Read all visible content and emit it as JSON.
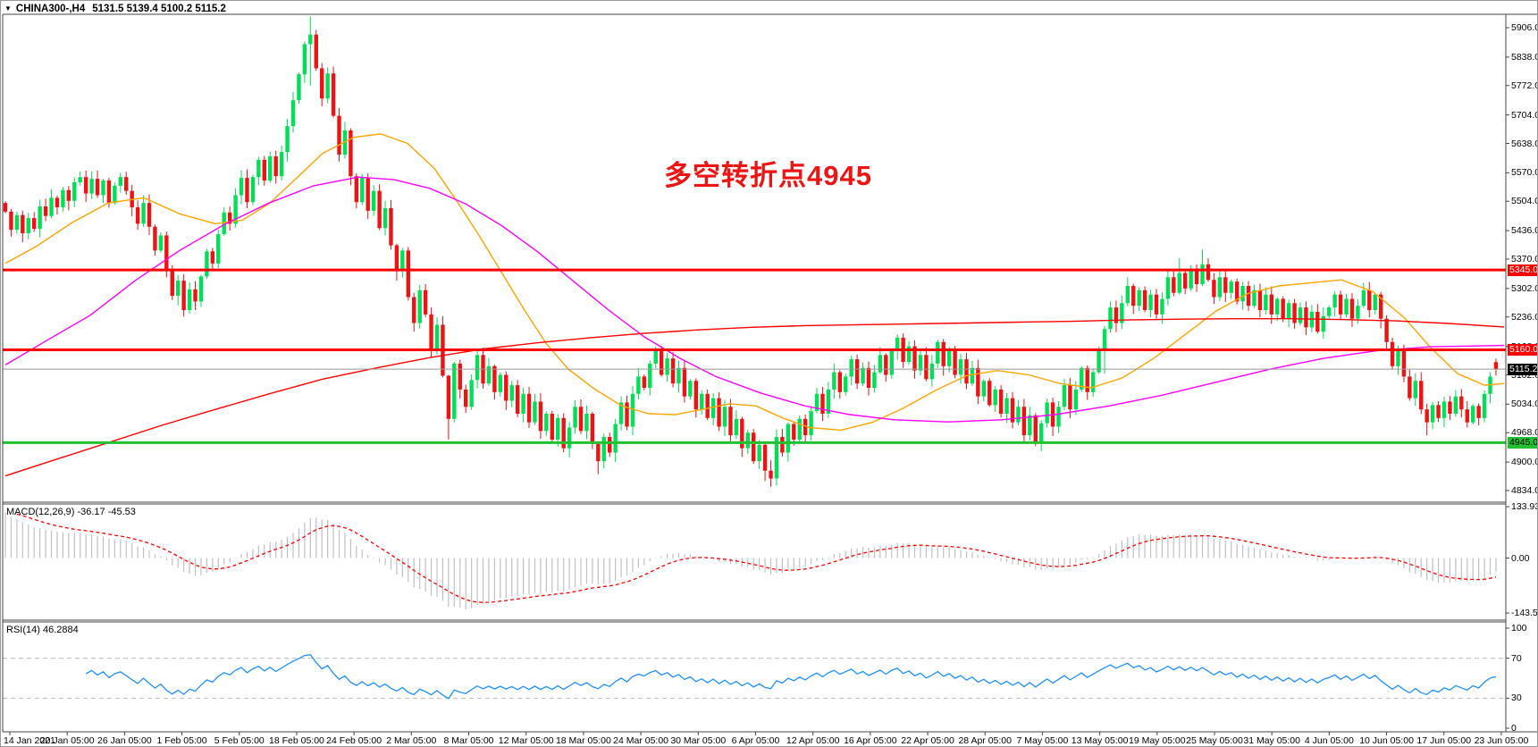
{
  "header": {
    "symbol": "CHINA300-,H4",
    "ohlc_line": "5131.5 5139.4 5100.2 5115.2",
    "dropdown_icon": "▼"
  },
  "annotation": {
    "text": "多空转折点4945",
    "color": "#ee1414"
  },
  "chart_data": {
    "type": "candlestick",
    "title": "CHINA300-,H4",
    "timeframe": "H4",
    "ylim": [
      4834,
      5906
    ],
    "grid": false,
    "up_color": "#00df55",
    "down_color": "#ee1212",
    "price_ticks": [
      5906.0,
      5838.0,
      5772.0,
      5704.0,
      5638.0,
      5570.0,
      5504.0,
      5436.0,
      5370.0,
      5302.0,
      5236.0,
      5168.0,
      5102.0,
      5034.0,
      4968.0,
      4900.0,
      4834.0
    ],
    "time_labels": [
      "14 Jan 2021",
      "20 Jan 05:00",
      "26 Jan 05:00",
      "1 Feb 05:00",
      "5 Feb 05:00",
      "18 Feb 05:00",
      "24 Feb 05:00",
      "2 Mar 05:00",
      "8 Mar 05:00",
      "12 Mar 05:00",
      "18 Mar 05:00",
      "24 Mar 05:00",
      "30 Mar 05:00",
      "6 Apr 05:00",
      "12 Apr 05:00",
      "16 Apr 05:00",
      "22 Apr 05:00",
      "28 Apr 05:00",
      "7 May 05:00",
      "13 May 05:00",
      "19 May 05:00",
      "25 May 05:00",
      "31 May 05:00",
      "4 Jun 05:00",
      "10 Jun 05:00",
      "17 Jun 05:00",
      "23 Jun 05:00"
    ],
    "first_open": 5500,
    "closes": [
      5480,
      5438,
      5472,
      5430,
      5465,
      5440,
      5492,
      5470,
      5512,
      5490,
      5530,
      5505,
      5548,
      5560,
      5522,
      5556,
      5518,
      5552,
      5500,
      5540,
      5560,
      5528,
      5490,
      5452,
      5500,
      5445,
      5390,
      5425,
      5345,
      5285,
      5320,
      5252,
      5300,
      5272,
      5330,
      5388,
      5360,
      5428,
      5478,
      5452,
      5518,
      5558,
      5502,
      5560,
      5600,
      5552,
      5608,
      5562,
      5618,
      5678,
      5738,
      5798,
      5868,
      5890,
      5812,
      5742,
      5800,
      5702,
      5612,
      5668,
      5562,
      5502,
      5558,
      5482,
      5528,
      5442,
      5488,
      5402,
      5342,
      5390,
      5282,
      5222,
      5298,
      5242,
      5160,
      5218,
      5100,
      5000,
      5128,
      5068,
      5028,
      5090,
      5148,
      5082,
      5122,
      5062,
      5102,
      5042,
      5078,
      5012,
      5058,
      4992,
      5040,
      4972,
      5012,
      4952,
      5002,
      4932,
      4980,
      5028,
      4972,
      5012,
      4942,
      4902,
      4958,
      4922,
      4988,
      5038,
      4982,
      5058,
      5098,
      5072,
      5128,
      5158,
      5102,
      5140,
      5082,
      5118,
      5052,
      5088,
      5022,
      5058,
      5002,
      5048,
      4982,
      5028,
      4962,
      5000,
      4932,
      4968,
      4902,
      4940,
      4880,
      4862,
      4958,
      4922,
      4988,
      4952,
      5000,
      4962,
      5018,
      5058,
      5012,
      5068,
      5108,
      5062,
      5098,
      5138,
      5082,
      5118,
      5072,
      5108,
      5148,
      5102,
      5158,
      5188,
      5132,
      5168,
      5112,
      5148,
      5092,
      5128,
      5178,
      5122,
      5158,
      5102,
      5138,
      5082,
      5118,
      5052,
      5088,
      5032,
      5068,
      5012,
      5048,
      4992,
      5028,
      4962,
      5008,
      4942,
      4990,
      5038,
      4982,
      5028,
      5078,
      5022,
      5068,
      5118,
      5062,
      5108,
      5158,
      5208,
      5258,
      5222,
      5268,
      5308,
      5262,
      5298,
      5252,
      5288,
      5242,
      5278,
      5328,
      5292,
      5338,
      5302,
      5348,
      5312,
      5358,
      5322,
      5282,
      5328,
      5292,
      5318,
      5272,
      5308,
      5262,
      5298,
      5252,
      5288,
      5242,
      5278,
      5232,
      5268,
      5222,
      5258,
      5212,
      5248,
      5202,
      5238,
      5258,
      5288,
      5242,
      5278,
      5232,
      5262,
      5298,
      5252,
      5288,
      5232,
      5178,
      5122,
      5158,
      5098,
      5048,
      5088,
      5022,
      4992,
      5032,
      5002,
      5040,
      5012,
      5052,
      5022,
      4992,
      5030,
      5002,
      5058,
      5098,
      5115.2
    ],
    "wick_overrides": {
      "53": [
        5932,
        5772
      ],
      "77": [
        5102,
        4952
      ],
      "78": [
        5132,
        4992
      ],
      "103": [
        4948,
        4872
      ],
      "132": [
        4944,
        4856
      ],
      "133": [
        4904,
        4843
      ],
      "191": [
        5215,
        5105
      ],
      "204": [
        5372,
        5288
      ],
      "208": [
        5392,
        5308
      ],
      "247": [
        5035,
        4962
      ],
      "259": [
        5139.4,
        5100.2
      ]
    },
    "last_candle": {
      "open": 5131.5,
      "high": 5139.4,
      "low": 5100.2,
      "close": 5115.2
    },
    "ma_lines": [
      {
        "name": "ma-fast-orange",
        "color": "#ffa500",
        "points": [
          [
            5,
            5360
          ],
          [
            40,
            5400
          ],
          [
            80,
            5455
          ],
          [
            120,
            5500
          ],
          [
            160,
            5512
          ],
          [
            200,
            5475
          ],
          [
            240,
            5452
          ],
          [
            270,
            5460
          ],
          [
            300,
            5498
          ],
          [
            330,
            5556
          ],
          [
            360,
            5615
          ],
          [
            395,
            5652
          ],
          [
            425,
            5660
          ],
          [
            455,
            5638
          ],
          [
            485,
            5580
          ],
          [
            510,
            5505
          ],
          [
            535,
            5425
          ],
          [
            560,
            5340
          ],
          [
            585,
            5255
          ],
          [
            610,
            5175
          ],
          [
            635,
            5115
          ],
          [
            665,
            5068
          ],
          [
            695,
            5030
          ],
          [
            725,
            5012
          ],
          [
            755,
            5010
          ],
          [
            785,
            5022
          ],
          [
            815,
            5035
          ],
          [
            845,
            5030
          ],
          [
            875,
            5002
          ],
          [
            905,
            4980
          ],
          [
            940,
            4974
          ],
          [
            975,
            4992
          ],
          [
            1010,
            5025
          ],
          [
            1045,
            5065
          ],
          [
            1080,
            5100
          ],
          [
            1115,
            5112
          ],
          [
            1150,
            5102
          ],
          [
            1185,
            5082
          ],
          [
            1220,
            5072
          ],
          [
            1255,
            5095
          ],
          [
            1290,
            5140
          ],
          [
            1325,
            5195
          ],
          [
            1360,
            5250
          ],
          [
            1395,
            5290
          ],
          [
            1430,
            5308
          ],
          [
            1465,
            5315
          ],
          [
            1500,
            5322
          ],
          [
            1535,
            5295
          ],
          [
            1570,
            5235
          ],
          [
            1600,
            5165
          ],
          [
            1630,
            5105
          ],
          [
            1660,
            5078
          ],
          [
            1682,
            5082
          ]
        ]
      },
      {
        "name": "ma-mid-magenta",
        "color": "#ff00ff",
        "points": [
          [
            5,
            5125
          ],
          [
            50,
            5180
          ],
          [
            100,
            5240
          ],
          [
            150,
            5320
          ],
          [
            200,
            5390
          ],
          [
            250,
            5450
          ],
          [
            300,
            5500
          ],
          [
            350,
            5540
          ],
          [
            400,
            5560
          ],
          [
            440,
            5554
          ],
          [
            480,
            5534
          ],
          [
            520,
            5498
          ],
          [
            560,
            5448
          ],
          [
            600,
            5388
          ],
          [
            640,
            5320
          ],
          [
            680,
            5252
          ],
          [
            720,
            5190
          ],
          [
            760,
            5140
          ],
          [
            800,
            5098
          ],
          [
            850,
            5060
          ],
          [
            900,
            5030
          ],
          [
            950,
            5010
          ],
          [
            1000,
            4998
          ],
          [
            1060,
            4993
          ],
          [
            1120,
            4998
          ],
          [
            1180,
            5010
          ],
          [
            1240,
            5030
          ],
          [
            1300,
            5055
          ],
          [
            1360,
            5085
          ],
          [
            1420,
            5115
          ],
          [
            1480,
            5140
          ],
          [
            1540,
            5158
          ],
          [
            1600,
            5167
          ],
          [
            1682,
            5170
          ]
        ]
      },
      {
        "name": "ma-slow-red",
        "color": "#ff0000",
        "points": [
          [
            5,
            4868
          ],
          [
            60,
            4905
          ],
          [
            120,
            4945
          ],
          [
            180,
            4985
          ],
          [
            240,
            5022
          ],
          [
            300,
            5058
          ],
          [
            360,
            5092
          ],
          [
            420,
            5118
          ],
          [
            480,
            5142
          ],
          [
            540,
            5162
          ],
          [
            600,
            5176
          ],
          [
            660,
            5188
          ],
          [
            720,
            5198
          ],
          [
            780,
            5206
          ],
          [
            840,
            5212
          ],
          [
            900,
            5216
          ],
          [
            960,
            5218
          ],
          [
            1020,
            5220
          ],
          [
            1080,
            5222
          ],
          [
            1140,
            5224
          ],
          [
            1200,
            5226
          ],
          [
            1260,
            5229
          ],
          [
            1320,
            5231
          ],
          [
            1380,
            5232
          ],
          [
            1440,
            5232
          ],
          [
            1500,
            5230
          ],
          [
            1560,
            5227
          ],
          [
            1620,
            5221
          ],
          [
            1682,
            5213
          ]
        ]
      }
    ],
    "hlines": [
      {
        "name": "resistance-line-5345",
        "price": 5345,
        "color": "#ff0000",
        "width": 3
      },
      {
        "name": "resistance-line-5160",
        "price": 5160,
        "color": "#ff0000",
        "width": 3
      },
      {
        "name": "support-line-4945",
        "price": 4945,
        "color": "#21c12f",
        "width": 3
      },
      {
        "name": "current-price-line",
        "price": 5115.2,
        "color": "#999999",
        "width": 1
      }
    ],
    "axis_badges": [
      {
        "text": "5345.0",
        "price": 5345,
        "bg": "#ff0000",
        "fg": "#ffffff"
      },
      {
        "text": "5160.0",
        "price": 5160,
        "bg": "#ff0000",
        "fg": "#ffffff"
      },
      {
        "text": "5115.2",
        "price": 5115.2,
        "bg": "#000000",
        "fg": "#ffffff"
      },
      {
        "text": "4945.0",
        "price": 4945,
        "bg": "#21c12f",
        "fg": "#000000"
      }
    ],
    "indicators": {
      "macd": {
        "label": "MACD(12,26,9) -36.17 -45.53",
        "fast": 12,
        "slow": 26,
        "signal": 9,
        "main_value": -36.17,
        "signal_value": -45.53,
        "ticks": [
          "133.93",
          "0.00",
          "-143.53"
        ],
        "tick_values": [
          133.93,
          0,
          -143.53
        ],
        "hist_color": "#c0c0c0",
        "signal_color": "#ff0000"
      },
      "rsi": {
        "label": "RSI(14) 46.2884",
        "period": 14,
        "value": 46.2884,
        "ticks": [
          "100",
          "70",
          "30",
          "0"
        ],
        "tick_values": [
          100,
          70,
          30,
          0
        ],
        "levels": [
          70,
          30
        ],
        "line_color": "#1e90ff",
        "level_color": "#bbbbbb"
      }
    }
  }
}
